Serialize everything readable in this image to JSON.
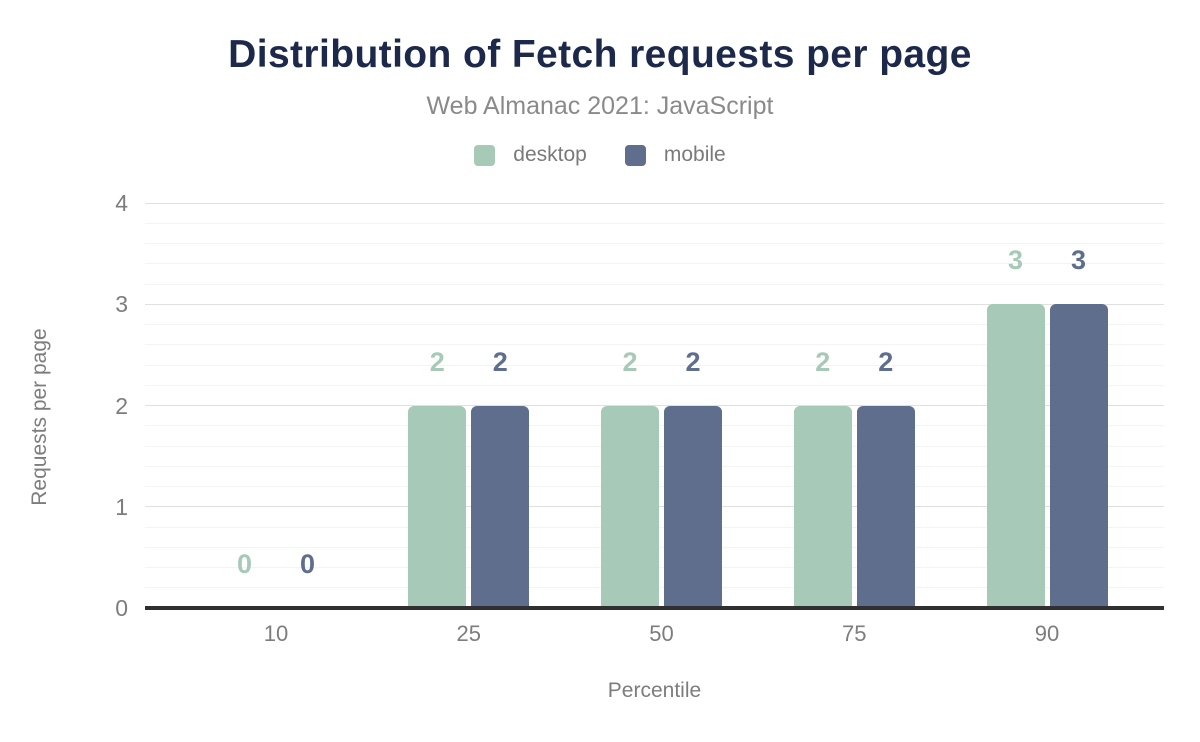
{
  "chart_data": {
    "type": "bar",
    "title": "Distribution of Fetch requests per page",
    "subtitle": "Web Almanac 2021: JavaScript",
    "xlabel": "Percentile",
    "ylabel": "Requests per page",
    "categories": [
      "10",
      "25",
      "50",
      "75",
      "90"
    ],
    "series": [
      {
        "name": "desktop",
        "color": "#a7c9b8",
        "values": [
          0,
          2,
          2,
          2,
          3
        ]
      },
      {
        "name": "mobile",
        "color": "#5e6e8c",
        "values": [
          0,
          2,
          2,
          2,
          3
        ]
      }
    ],
    "ylim": [
      0,
      4
    ],
    "yticks": [
      "0",
      "1",
      "2",
      "3",
      "4"
    ],
    "minor_grid_step": 0.2,
    "grid": "on",
    "legend_position": "top",
    "data_labels_shown": true
  },
  "theme": {
    "title_color": "#1c294a",
    "axis_text_color": "#7d7d7d",
    "major_grid_color": "#e0e0e0",
    "minor_grid_color": "#f4f4f4",
    "axis_line_color": "#303030",
    "background": "#ffffff"
  }
}
